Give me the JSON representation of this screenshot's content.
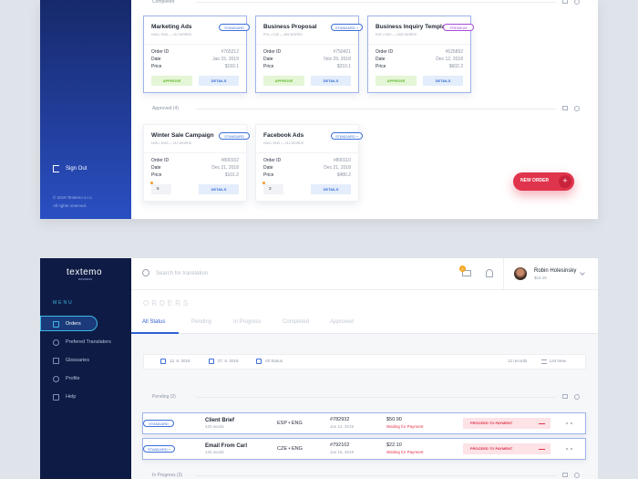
{
  "top_panel": {
    "sidebar": {
      "sign_out": "Sign Out",
      "copyright": "© 2019 Textemo s.r.o.",
      "rights": "All rights reserved."
    },
    "completed": {
      "label": "Completed",
      "cards": [
        {
          "title": "Marketing Ads",
          "tag": "STANDARD",
          "tag_color": "#3b6fd8",
          "meta": "HUN • ENG — 212 WORDS",
          "fields": [
            {
              "label": "Order ID",
              "value": "#765212"
            },
            {
              "label": "Date",
              "value": "Jan 15, 2019"
            },
            {
              "label": "Price",
              "value": "$193.1"
            }
          ],
          "approve": "APPROVE",
          "details": "DETAILS"
        },
        {
          "title": "Business Proposal",
          "tag": "STANDARD +",
          "tag_color": "#3b6fd8",
          "meta": "POL • CZE — 455 WORDS",
          "fields": [
            {
              "label": "Order ID",
              "value": "#750421"
            },
            {
              "label": "Date",
              "value": "Nov 29, 2018"
            },
            {
              "label": "Price",
              "value": "$210.1"
            }
          ],
          "approve": "APPROVE",
          "details": "DETAILS"
        },
        {
          "title": "Business Inquiry Template",
          "tag": "PREMIUM",
          "tag_color": "#a64bd8",
          "meta": "ESP • DEU — 2302 WORDS",
          "fields": [
            {
              "label": "Order ID",
              "value": "#625892"
            },
            {
              "label": "Date",
              "value": "Dec 12, 2018"
            },
            {
              "label": "Price",
              "value": "$602.2"
            }
          ],
          "approve": "APPROVE",
          "details": "DETAILS"
        }
      ]
    },
    "approved": {
      "label": "Approved (4)",
      "cards": [
        {
          "title": "Winter Sale Campaign",
          "tag": "STANDARD",
          "tag_color": "#3b6fd8",
          "meta": "HUN • ENG — 212 WORDS",
          "fields": [
            {
              "label": "Order ID",
              "value": "#800102"
            },
            {
              "label": "Date",
              "value": "Dec 21, 2018"
            },
            {
              "label": "Price",
              "value": "$101.2"
            }
          ],
          "comments": "5",
          "details": "DETAILS"
        },
        {
          "title": "Facebook Ads",
          "tag": "STANDARD +",
          "tag_color": "#3b6fd8",
          "meta": "HUN • ENG — 212 WORDS",
          "fields": [
            {
              "label": "Order ID",
              "value": "#800110"
            },
            {
              "label": "Date",
              "value": "Dec 21, 2018"
            },
            {
              "label": "Price",
              "value": "$480.2"
            }
          ],
          "comments": "3",
          "details": "DETAILS"
        }
      ]
    },
    "new_order": {
      "label": "NEW ORDER",
      "plus": "+"
    }
  },
  "bottom_panel": {
    "logo": {
      "name": "textemo",
      "sub": "BUSINESS"
    },
    "menu": {
      "title": "MENU",
      "items": [
        "Orders",
        "Prefered Translators",
        "Glossaries",
        "Profile",
        "Help"
      ]
    },
    "header": {
      "search": "Search for translation",
      "badge": "2",
      "user": "Robin Holesinsky",
      "balance": "$19.45"
    },
    "page_title": "ORDERS",
    "tabs": [
      "All Status",
      "Pending",
      "In Progress",
      "Completed",
      "Approved"
    ],
    "filters": {
      "from": "12. 6. 2018",
      "to": "27. 6. 2018",
      "status": "All Status",
      "records": "12 records",
      "view": "List View"
    },
    "pending": {
      "label": "Pending (2)",
      "rows": [
        {
          "tag": "STANDARD",
          "title": "Client Brief",
          "words": "420 words",
          "langs": "ESP • ENG",
          "id": "#782932",
          "date": "Jan 12, 2019",
          "price": "$50.90",
          "status": "Waiting for Payment",
          "action": "PROCEED TO PAYMENT"
        },
        {
          "tag": "STANDARD +",
          "title": "Email From Carl",
          "words": "132 words",
          "langs": "CZE • ENG",
          "id": "#792102",
          "date": "Jan 16, 2019",
          "price": "$22.10",
          "status": "Waiting for Payment",
          "action": "PROCEED TO PAYMENT"
        }
      ]
    },
    "in_progress": {
      "label": "In Progress (3)"
    }
  }
}
